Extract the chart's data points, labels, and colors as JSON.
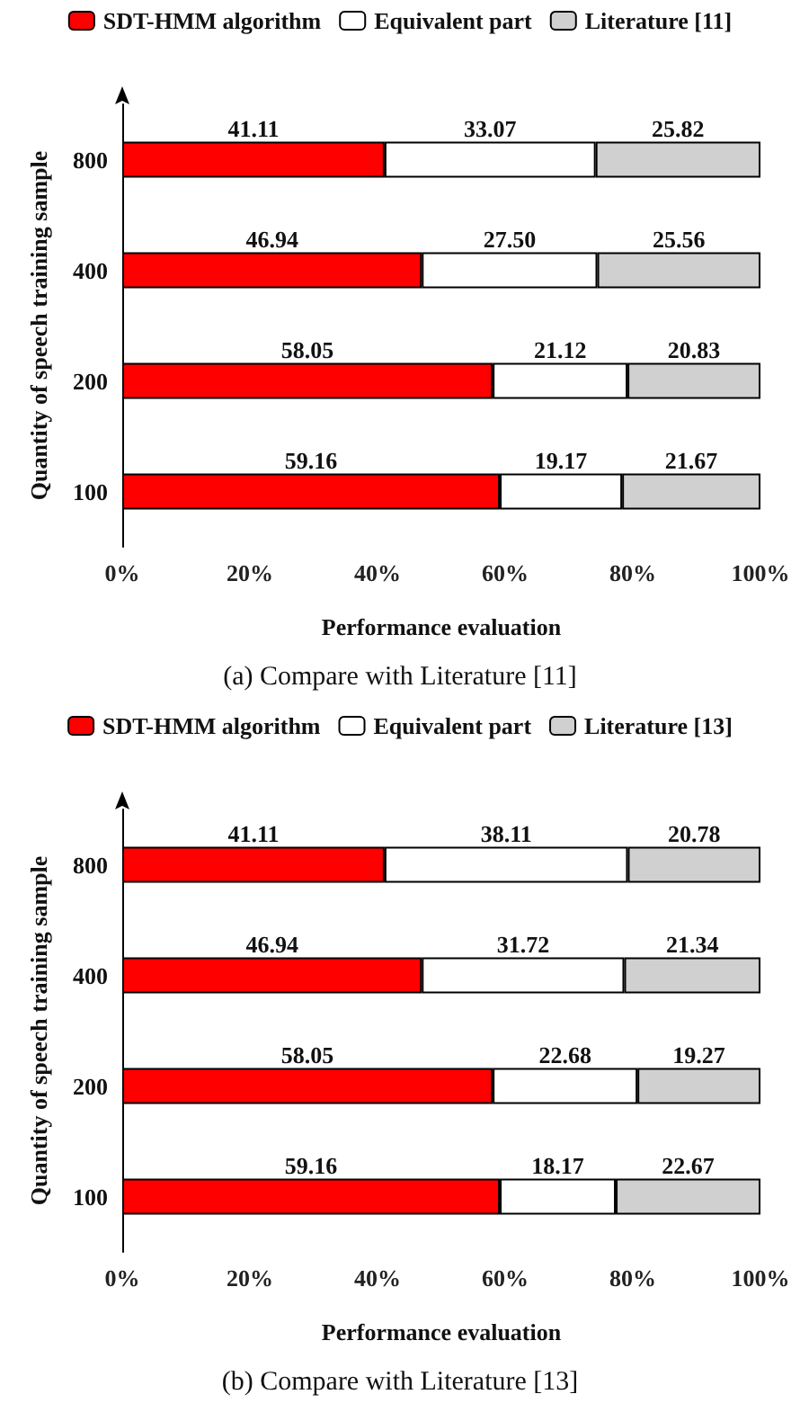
{
  "chart_data": [
    {
      "type": "bar",
      "orientation": "horizontal",
      "stacked": true,
      "categories": [
        "800",
        "400",
        "200",
        "100"
      ],
      "xlim": [
        0,
        100
      ],
      "xticks": [
        {
          "value": 0,
          "label": "0%"
        },
        {
          "value": 20,
          "label": "20%"
        },
        {
          "value": 40,
          "label": "40%"
        },
        {
          "value": 60,
          "label": "60%"
        },
        {
          "value": 80,
          "label": "80%"
        },
        {
          "value": 100,
          "label": "100%"
        }
      ],
      "xlabel": "Performance evaluation",
      "ylabel": "Quantity of speech training sample",
      "legend": "top",
      "grid": false,
      "annotations": [
        "(a) Compare with Literature [11]"
      ],
      "series": [
        {
          "name": "SDT-HMM algorithm",
          "color": "#ff0000",
          "values": [
            41.11,
            46.94,
            58.05,
            59.16
          ],
          "value_labels": [
            "41.11",
            "46.94",
            "58.05",
            "59.16"
          ]
        },
        {
          "name": "Equivalent part",
          "color": "#ffffff",
          "values": [
            33.07,
            27.5,
            21.12,
            19.17
          ],
          "value_labels": [
            "33.07",
            "27.50",
            "21.12",
            "19.17"
          ]
        },
        {
          "name": "Literature [11]",
          "color": "#d0d0d0",
          "values": [
            25.82,
            25.56,
            20.83,
            21.67
          ],
          "value_labels": [
            "25.82",
            "25.56",
            "20.83",
            "21.67"
          ]
        }
      ]
    },
    {
      "type": "bar",
      "orientation": "horizontal",
      "stacked": true,
      "categories": [
        "800",
        "400",
        "200",
        "100"
      ],
      "xlim": [
        0,
        100
      ],
      "xticks": [
        {
          "value": 0,
          "label": "0%"
        },
        {
          "value": 20,
          "label": "20%"
        },
        {
          "value": 40,
          "label": "40%"
        },
        {
          "value": 60,
          "label": "60%"
        },
        {
          "value": 80,
          "label": "80%"
        },
        {
          "value": 100,
          "label": "100%"
        }
      ],
      "xlabel": "Performance evaluation",
      "ylabel": "Quantity of speech training sample",
      "legend": "top",
      "grid": false,
      "annotations": [
        "(b) Compare with Literature [13]"
      ],
      "series": [
        {
          "name": "SDT-HMM algorithm",
          "color": "#ff0000",
          "values": [
            41.11,
            46.94,
            58.05,
            59.16
          ],
          "value_labels": [
            "41.11",
            "46.94",
            "58.05",
            "59.16"
          ]
        },
        {
          "name": "Equivalent part",
          "color": "#ffffff",
          "values": [
            38.11,
            31.72,
            22.68,
            18.17
          ],
          "value_labels": [
            "38.11",
            "31.72",
            "22.68",
            "18.17"
          ]
        },
        {
          "name": "Literature [13]",
          "color": "#d0d0d0",
          "values": [
            20.78,
            21.34,
            19.27,
            22.67
          ],
          "value_labels": [
            "20.78",
            "21.34",
            "19.27",
            "22.67"
          ]
        }
      ]
    }
  ]
}
